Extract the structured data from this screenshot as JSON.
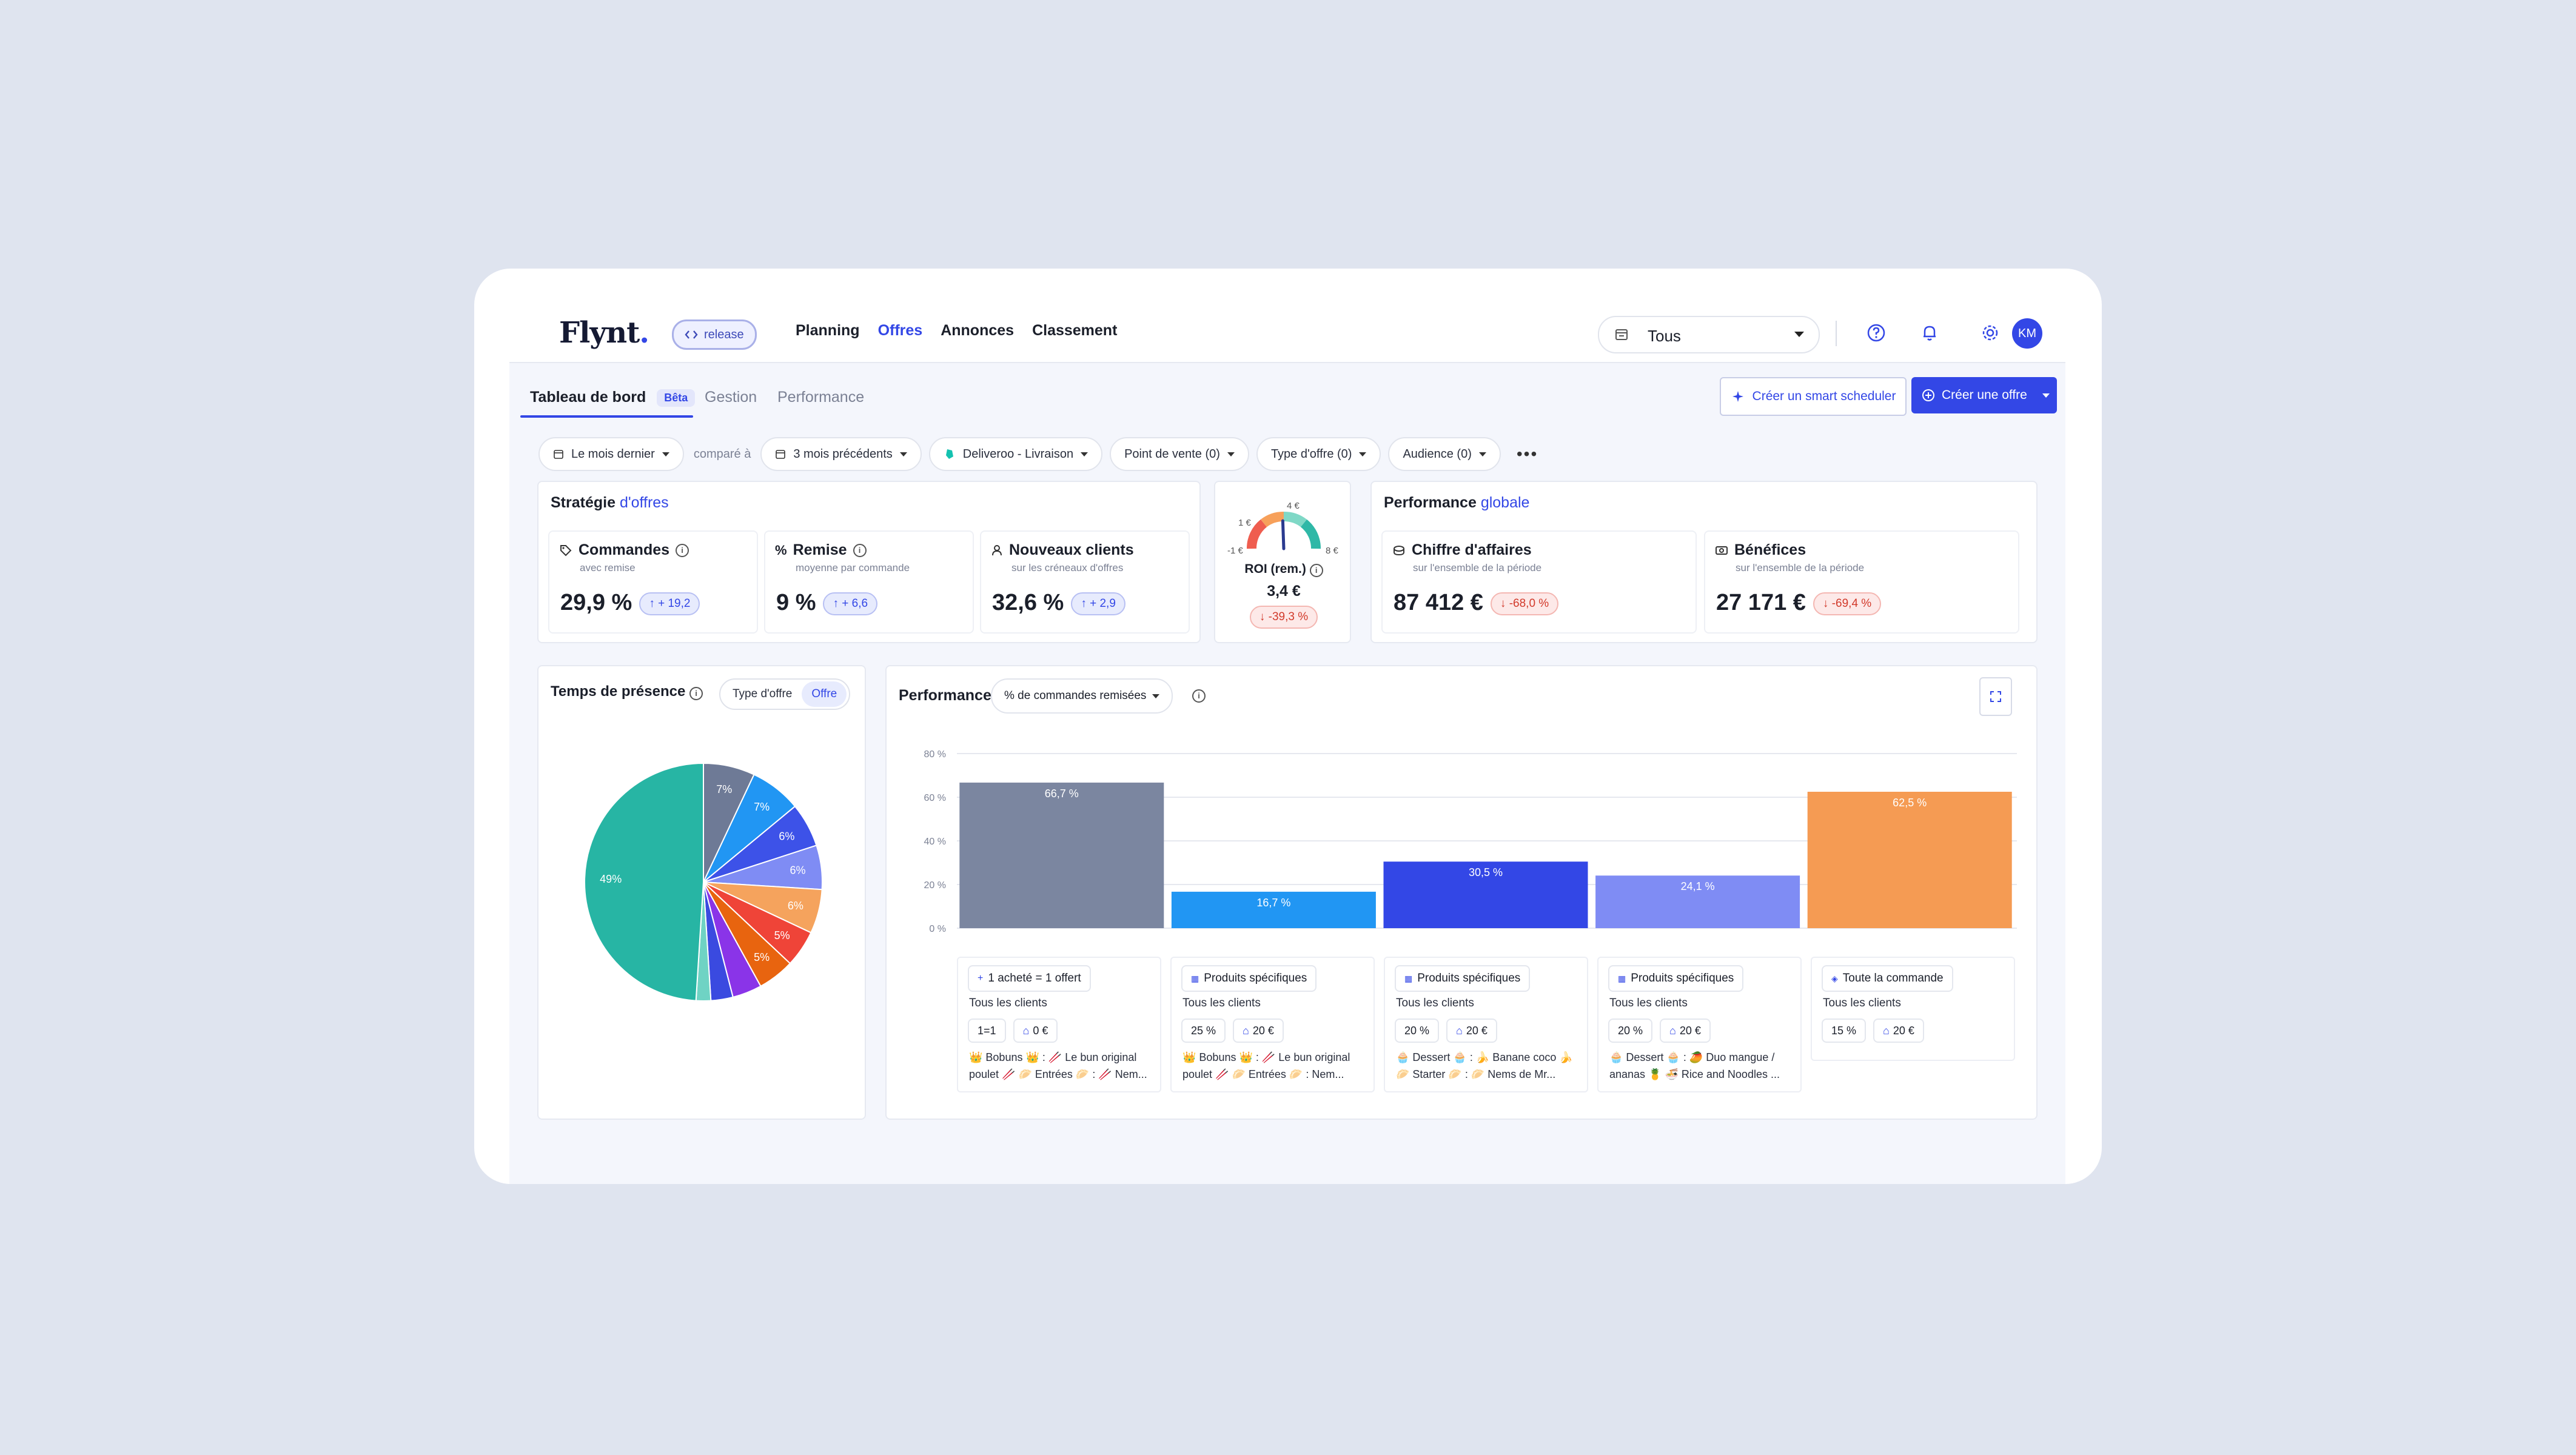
{
  "header": {
    "logo": "Flynt",
    "logo_dot": ".",
    "release_label": "release",
    "nav": [
      "Planning",
      "Offres",
      "Annonces",
      "Classement"
    ],
    "active_nav": "Offres",
    "store_select": "Tous",
    "avatar_initials": "KM",
    "icons": [
      "store-icon",
      "help-icon",
      "bell-icon",
      "gear-icon"
    ]
  },
  "tabs": {
    "dashboard": "Tableau de bord",
    "beta": "Bêta",
    "gestion": "Gestion",
    "performance": "Performance"
  },
  "actions": {
    "smart_scheduler": "Créer un smart scheduler",
    "create_offer": "Créer une offre"
  },
  "filters": {
    "period": "Le mois dernier",
    "compare_label": "comparé à",
    "compare_period": "3 mois précédents",
    "platform": "Deliveroo - Livraison",
    "point_of_sale": "Point de vente (0)",
    "offer_type": "Type d'offre (0)",
    "audience": "Audience (0)",
    "more": "•••"
  },
  "strategy": {
    "title": "Stratégie",
    "title_accent": "d'offres",
    "kpis": [
      {
        "label": "Commandes",
        "sub": "avec remise",
        "value": "29,9 %",
        "delta": "+ 19,2"
      },
      {
        "label": "Remise",
        "sub": "moyenne par commande",
        "value": "9 %",
        "delta": "+ 6,6"
      },
      {
        "label": "Nouveaux clients",
        "sub": "sur les créneaux d'offres",
        "value": "32,6 %",
        "delta": "+ 2,9"
      }
    ]
  },
  "roi": {
    "labels": {
      "min": "-1 €",
      "low": "1 €",
      "high": "4 €",
      "max": "8 €"
    },
    "title": "ROI (rem.)",
    "value": "3,4 €",
    "delta": "-39,3 %",
    "level": 3.4
  },
  "global": {
    "title": "Performance",
    "title_accent": "globale",
    "kpis": [
      {
        "label": "Chiffre d'affaires",
        "sub": "sur l'ensemble de la période",
        "value": "87 412 €",
        "delta": "-68,0 %"
      },
      {
        "label": "Bénéfices",
        "sub": "sur l'ensemble de la période",
        "value": "27 171 €",
        "delta": "-69,4 %"
      }
    ]
  },
  "presence": {
    "title": "Temps de présence",
    "toggle": [
      "Type d'offre",
      "Offre"
    ],
    "active_toggle": "Offre"
  },
  "perf_chart": {
    "title": "Performance",
    "metric": "% de commandes remisées"
  },
  "chart_data": [
    {
      "type": "pie",
      "values": [
        7,
        7,
        6,
        6,
        6,
        5,
        5,
        4,
        3,
        2,
        49
      ],
      "labels": [
        "7%",
        "7%",
        "6%",
        "6%",
        "6%",
        "5%",
        "5%",
        "",
        "",
        "",
        "49%"
      ],
      "colors": [
        "#6e7a96",
        "#2196f3",
        "#3d52e8",
        "#7f8cf4",
        "#f5a35d",
        "#ef4438",
        "#e8640f",
        "#8a34e8",
        "#3a4ae0",
        "#6fd3c4",
        "#27b5a4"
      ]
    },
    {
      "type": "bar",
      "categories": [
        "1 acheté = 1 offert",
        "Produits spécifiques",
        "Produits spécifiques",
        "Produits spécifiques",
        "Toute la commande"
      ],
      "values": [
        66.7,
        16.7,
        30.5,
        24.1,
        62.5
      ],
      "value_labels": [
        "66,7 %",
        "16,7 %",
        "30,5 %",
        "24,1 %",
        "62,5 %"
      ],
      "colors": [
        "#7b86a0",
        "#2196f3",
        "#3347e6",
        "#7f8cf4",
        "#f59b53"
      ],
      "yticks": [
        "0 %",
        "20 %",
        "40 %",
        "60 %",
        "80 %"
      ],
      "ylim": [
        0,
        80
      ]
    }
  ],
  "offers": [
    {
      "type": "1 acheté = 1 offert",
      "audience": "Tous les clients",
      "discount": "1=1",
      "min": "0 €",
      "products_1": "👑 Bobuns 👑 : 🥢 Le bun original",
      "products_2": "poulet 🥢 🥟 Entrées 🥟 : 🥢 Nem..."
    },
    {
      "type": "Produits spécifiques",
      "audience": "Tous les clients",
      "discount": "25 %",
      "min": "20 €",
      "products_1": "👑 Bobuns 👑 : 🥢 Le bun original",
      "products_2": "poulet 🥢 🥟 Entrées 🥟 : Nem..."
    },
    {
      "type": "Produits spécifiques",
      "audience": "Tous les clients",
      "discount": "20 %",
      "min": "20 €",
      "products_1": "🧁 Dessert 🧁 : 🍌 Banane coco 🍌",
      "products_2": "🥟 Starter 🥟 : 🥟 Nems de Mr..."
    },
    {
      "type": "Produits spécifiques",
      "audience": "Tous les clients",
      "discount": "20 %",
      "min": "20 €",
      "products_1": "🧁 Dessert 🧁 : 🥭 Duo mangue /",
      "products_2": "ananas 🍍 🍜 Rice and Noodles ..."
    },
    {
      "type": "Toute la commande",
      "audience": "Tous les clients",
      "discount": "15 %",
      "min": "20 €",
      "products_1": "",
      "products_2": ""
    }
  ]
}
